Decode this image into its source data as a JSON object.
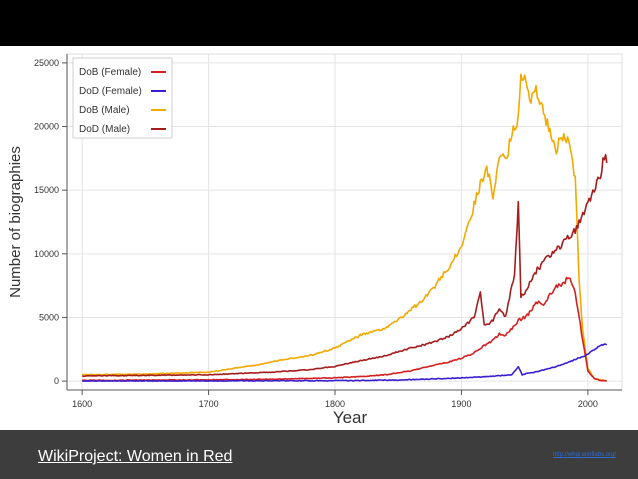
{
  "colors": {
    "background": "#000000",
    "footer_bg": "#3d3d3d",
    "grid": "#e4e4e4"
  },
  "footer": {
    "title": "WikiProject: Women in Red",
    "link_text": "http://whgi.wmflabs.org/"
  },
  "chart_data": {
    "type": "line",
    "title": "",
    "xlabel": "Year",
    "ylabel": "Number of biographies",
    "xlim": [
      1588,
      2027
    ],
    "ylim": [
      -700,
      25700
    ],
    "xticks": [
      1600,
      1700,
      1800,
      1900,
      2000
    ],
    "yticks": [
      0,
      5000,
      10000,
      15000,
      20000,
      25000
    ],
    "grid": true,
    "legend_position": "top-left",
    "series": [
      {
        "name": "DoB (Female)",
        "color": "#d42020",
        "x": [
          1600,
          1650,
          1700,
          1750,
          1800,
          1820,
          1840,
          1860,
          1880,
          1890,
          1900,
          1910,
          1915,
          1920,
          1925,
          1930,
          1935,
          1940,
          1945,
          1950,
          1955,
          1960,
          1965,
          1970,
          1975,
          1980,
          1985,
          1990,
          1995,
          2000,
          2005,
          2010,
          2015
        ],
        "y": [
          50,
          80,
          100,
          150,
          250,
          350,
          500,
          800,
          1300,
          1500,
          1800,
          2200,
          2600,
          2900,
          3200,
          3700,
          3600,
          4100,
          4800,
          5000,
          5500,
          6200,
          6100,
          6800,
          7400,
          7600,
          8200,
          7000,
          3800,
          800,
          200,
          50,
          20
        ]
      },
      {
        "name": "DoD (Female)",
        "color": "#3a1fd1",
        "x": [
          1600,
          1700,
          1800,
          1850,
          1900,
          1920,
          1940,
          1945,
          1948,
          1950,
          1960,
          1970,
          1980,
          1990,
          2000,
          2005,
          2010,
          2015
        ],
        "y": [
          0,
          10,
          30,
          80,
          250,
          350,
          500,
          1150,
          500,
          550,
          750,
          1000,
          1300,
          1700,
          2100,
          2500,
          2800,
          2900
        ]
      },
      {
        "name": "DoB (Male)",
        "color": "#f2a900",
        "x": [
          1600,
          1650,
          1700,
          1720,
          1740,
          1760,
          1780,
          1800,
          1820,
          1840,
          1860,
          1870,
          1880,
          1890,
          1900,
          1905,
          1910,
          1915,
          1920,
          1925,
          1930,
          1935,
          1940,
          1945,
          1947,
          1950,
          1955,
          1960,
          1965,
          1970,
          1975,
          1980,
          1985,
          1990,
          1993,
          1996,
          2000,
          2005,
          2010,
          2015
        ],
        "y": [
          500,
          550,
          700,
          1000,
          1300,
          1700,
          2000,
          2600,
          3600,
          4100,
          5600,
          6400,
          7600,
          9000,
          10600,
          12000,
          13800,
          15500,
          16800,
          14500,
          18000,
          17200,
          19500,
          20800,
          24400,
          23700,
          22200,
          22800,
          21000,
          19800,
          18300,
          19200,
          18800,
          16000,
          8000,
          4000,
          1000,
          200,
          80,
          50
        ]
      },
      {
        "name": "DoD (Male)",
        "color": "#a51c1c",
        "x": [
          1600,
          1650,
          1700,
          1750,
          1780,
          1800,
          1820,
          1840,
          1860,
          1880,
          1890,
          1900,
          1910,
          1915,
          1918,
          1920,
          1925,
          1930,
          1935,
          1940,
          1942,
          1945,
          1947,
          1950,
          1955,
          1960,
          1965,
          1970,
          1975,
          1980,
          1985,
          1990,
          1995,
          2000,
          2005,
          2010,
          2013,
          2015
        ],
        "y": [
          400,
          450,
          500,
          700,
          900,
          1150,
          1600,
          2000,
          2600,
          3100,
          3500,
          4100,
          5000,
          6900,
          4500,
          4400,
          4800,
          5700,
          5000,
          7500,
          8200,
          14200,
          6500,
          7000,
          7800,
          8800,
          9300,
          9900,
          10300,
          10800,
          11300,
          11800,
          13000,
          14000,
          15000,
          16200,
          17800,
          17400
        ]
      }
    ]
  }
}
